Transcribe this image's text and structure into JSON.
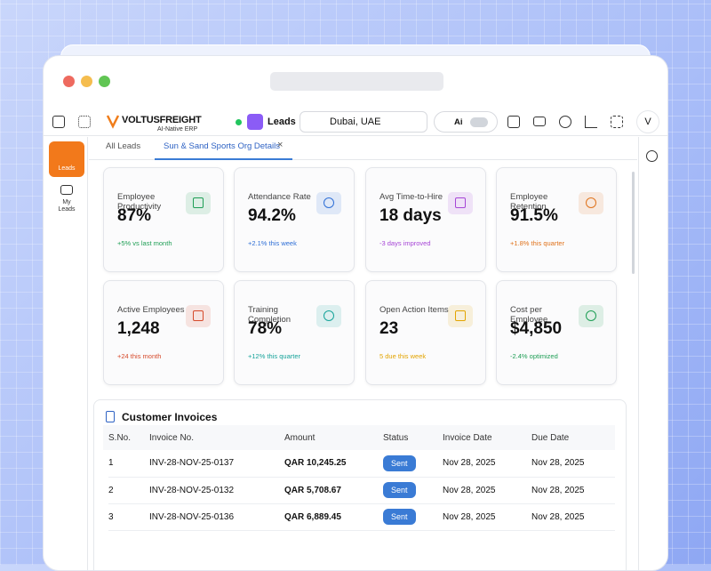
{
  "header": {
    "logo_name": "VOLTUSFREIGHT",
    "logo_sub": "AI-Native ERP",
    "module": "Leads",
    "location": "Dubai, UAE",
    "ai_label": "Ai",
    "avatar": "V"
  },
  "sidebar": [
    {
      "label": "Leads"
    },
    {
      "label": "My Leads"
    }
  ],
  "tabs": [
    {
      "label": "All Leads"
    },
    {
      "label": "Sun & Sand Sports Org Details"
    }
  ],
  "kpis": [
    {
      "label": "Employee Productivity",
      "value": "87%",
      "change": "+5% vs last month",
      "color": "#1e9e55"
    },
    {
      "label": "Attendance Rate",
      "value": "94.2%",
      "change": "+2.1% this week",
      "color": "#2f6fd6"
    },
    {
      "label": "Avg Time-to-Hire",
      "value": "18 days",
      "change": "-3 days improved",
      "color": "#a646d6"
    },
    {
      "label": "Employee Retention",
      "value": "91.5%",
      "change": "+1.8% this quarter",
      "color": "#e0731c"
    },
    {
      "label": "Active Employees",
      "value": "1,248",
      "change": "+24 this month",
      "color": "#d64a2b"
    },
    {
      "label": "Training Completion",
      "value": "78%",
      "change": "+12% this quarter",
      "color": "#16a39a"
    },
    {
      "label": "Open Action Items",
      "value": "23",
      "change": "5 due this week",
      "color": "#e3a400"
    },
    {
      "label": "Cost per Employee",
      "value": "$4,850",
      "change": "-2.4% optimized",
      "color": "#1e9e55"
    }
  ],
  "invoices": {
    "title": "Customer Invoices",
    "columns": [
      "S.No.",
      "Invoice No.",
      "Amount",
      "Status",
      "Invoice Date",
      "Due Date"
    ],
    "rows": [
      [
        "1",
        "INV-28-NOV-25-0137",
        "QAR 10,245.25",
        "Sent",
        "Nov 28, 2025",
        "Nov 28, 2025"
      ],
      [
        "2",
        "INV-28-NOV-25-0132",
        "QAR 5,708.67",
        "Sent",
        "Nov 28, 2025",
        "Nov 28, 2025"
      ],
      [
        "3",
        "INV-28-NOV-25-0136",
        "QAR 6,889.45",
        "Sent",
        "Nov 28, 2025",
        "Nov 28, 2025"
      ]
    ]
  }
}
